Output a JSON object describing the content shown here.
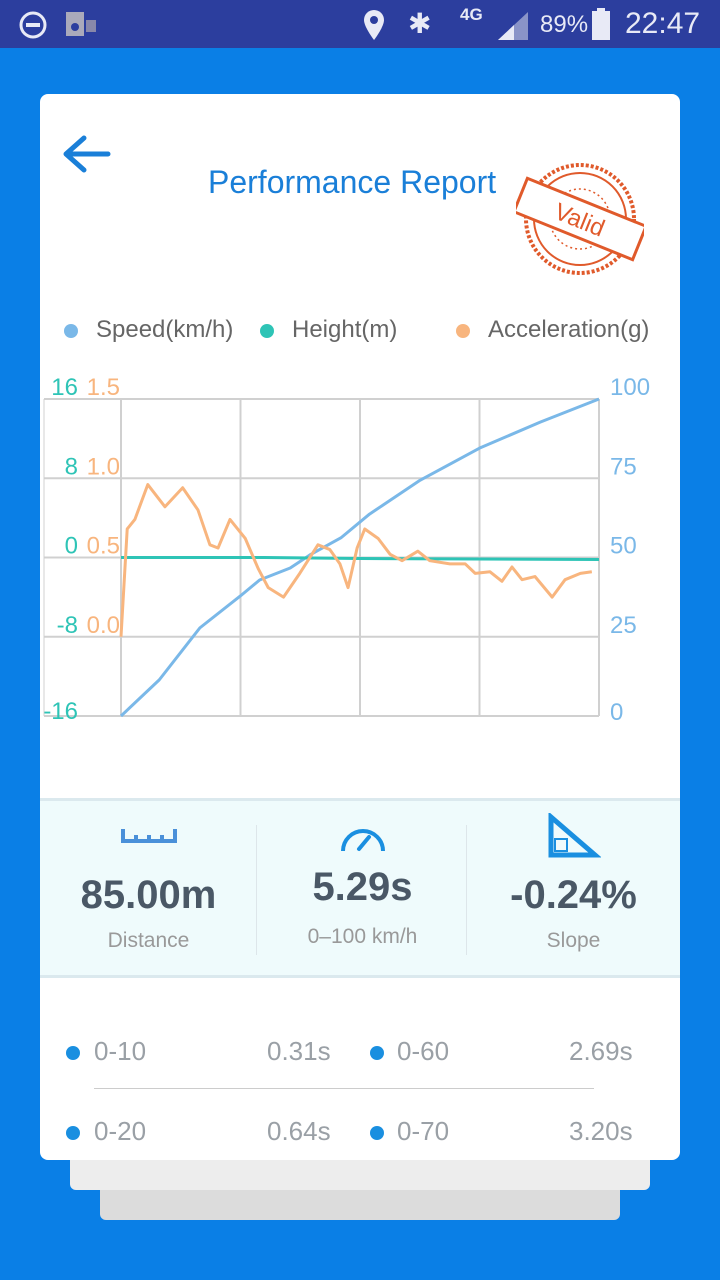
{
  "status_bar": {
    "icons": [
      "do-not-disturb-icon",
      "speaker-icon",
      "location-icon",
      "bluetooth-icon",
      "4g-icon",
      "signal-icon",
      "battery-icon"
    ],
    "network": "4G",
    "battery": "89%",
    "time": "22:47"
  },
  "header": {
    "title": "Performance Report",
    "stamp_text": "Valid",
    "back_icon": "arrow-left-icon"
  },
  "colors": {
    "speed": "#7ab8e8",
    "height": "#2ec4b6",
    "acceleration": "#f8b57e",
    "accent": "#1a7fd8",
    "stamp": "#e05a2b"
  },
  "chart_data": {
    "type": "line",
    "legend_position": "top",
    "grid": true,
    "series": [
      {
        "name": "Speed(km/h)",
        "axis": "right",
        "points": [
          [
            0,
            0
          ],
          [
            8,
            11.4
          ],
          [
            16.5,
            27.8
          ],
          [
            25,
            37.9
          ],
          [
            29,
            42.9
          ],
          [
            35.4,
            46.7
          ],
          [
            39.5,
            50.8
          ],
          [
            46,
            56.2
          ],
          [
            52,
            63.7
          ],
          [
            62.6,
            74.4
          ],
          [
            75,
            84.5
          ],
          [
            87.7,
            92.7
          ],
          [
            100,
            100
          ]
        ]
      },
      {
        "name": "Height(m)",
        "axis": "left-outer",
        "points": [
          [
            0,
            0
          ],
          [
            30,
            0
          ],
          [
            50,
            -0.1
          ],
          [
            100,
            -0.2
          ]
        ]
      },
      {
        "name": "Acceleration(g)",
        "axis": "left-inner",
        "points": [
          [
            0,
            0
          ],
          [
            1.3,
            0.68
          ],
          [
            2.9,
            0.74
          ],
          [
            5.6,
            0.96
          ],
          [
            9.2,
            0.82
          ],
          [
            12.9,
            0.94
          ],
          [
            16.1,
            0.8
          ],
          [
            18.6,
            0.58
          ],
          [
            20.3,
            0.56
          ],
          [
            22.8,
            0.74
          ],
          [
            26,
            0.62
          ],
          [
            28.7,
            0.43
          ],
          [
            30.8,
            0.31
          ],
          [
            34,
            0.25
          ],
          [
            37.4,
            0.4
          ],
          [
            41.2,
            0.58
          ],
          [
            43.7,
            0.55
          ],
          [
            45.8,
            0.46
          ],
          [
            47.5,
            0.31
          ],
          [
            49.4,
            0.56
          ],
          [
            51,
            0.68
          ],
          [
            53.8,
            0.62
          ],
          [
            56.3,
            0.52
          ],
          [
            58.8,
            0.48
          ],
          [
            62.1,
            0.54
          ],
          [
            64.6,
            0.48
          ],
          [
            68.8,
            0.46
          ],
          [
            72,
            0.46
          ],
          [
            74.1,
            0.4
          ],
          [
            77.2,
            0.41
          ],
          [
            79.7,
            0.35
          ],
          [
            81.8,
            0.44
          ],
          [
            83.9,
            0.36
          ],
          [
            86.6,
            0.38
          ],
          [
            90.2,
            0.25
          ],
          [
            92.9,
            0.36
          ],
          [
            96.1,
            0.4
          ],
          [
            98.5,
            0.41
          ]
        ]
      }
    ],
    "y_left_outer": {
      "ticks": [
        "16",
        "8",
        "0",
        "-8",
        "-16"
      ],
      "range": [
        -16,
        16
      ]
    },
    "y_left_inner": {
      "ticks": [
        "1.5",
        "1.0",
        "0.5",
        "0.0"
      ],
      "range": [
        -0.5,
        1.5
      ]
    },
    "y_right": {
      "ticks": [
        "100",
        "75",
        "50",
        "25",
        "0"
      ],
      "range": [
        0,
        100
      ]
    },
    "x_range": [
      0,
      100
    ]
  },
  "stats": [
    {
      "icon": "ruler-icon",
      "value": "85.00m",
      "label": "Distance"
    },
    {
      "icon": "speedometer-icon",
      "value": "5.29s",
      "label": "0–100 km/h"
    },
    {
      "icon": "slope-icon",
      "value": "-0.24%",
      "label": "Slope"
    }
  ],
  "splits": [
    {
      "range": "0-10",
      "time": "0.31s"
    },
    {
      "range": "0-60",
      "time": "2.69s"
    },
    {
      "range": "0-20",
      "time": "0.64s"
    },
    {
      "range": "0-70",
      "time": "3.20s"
    }
  ]
}
